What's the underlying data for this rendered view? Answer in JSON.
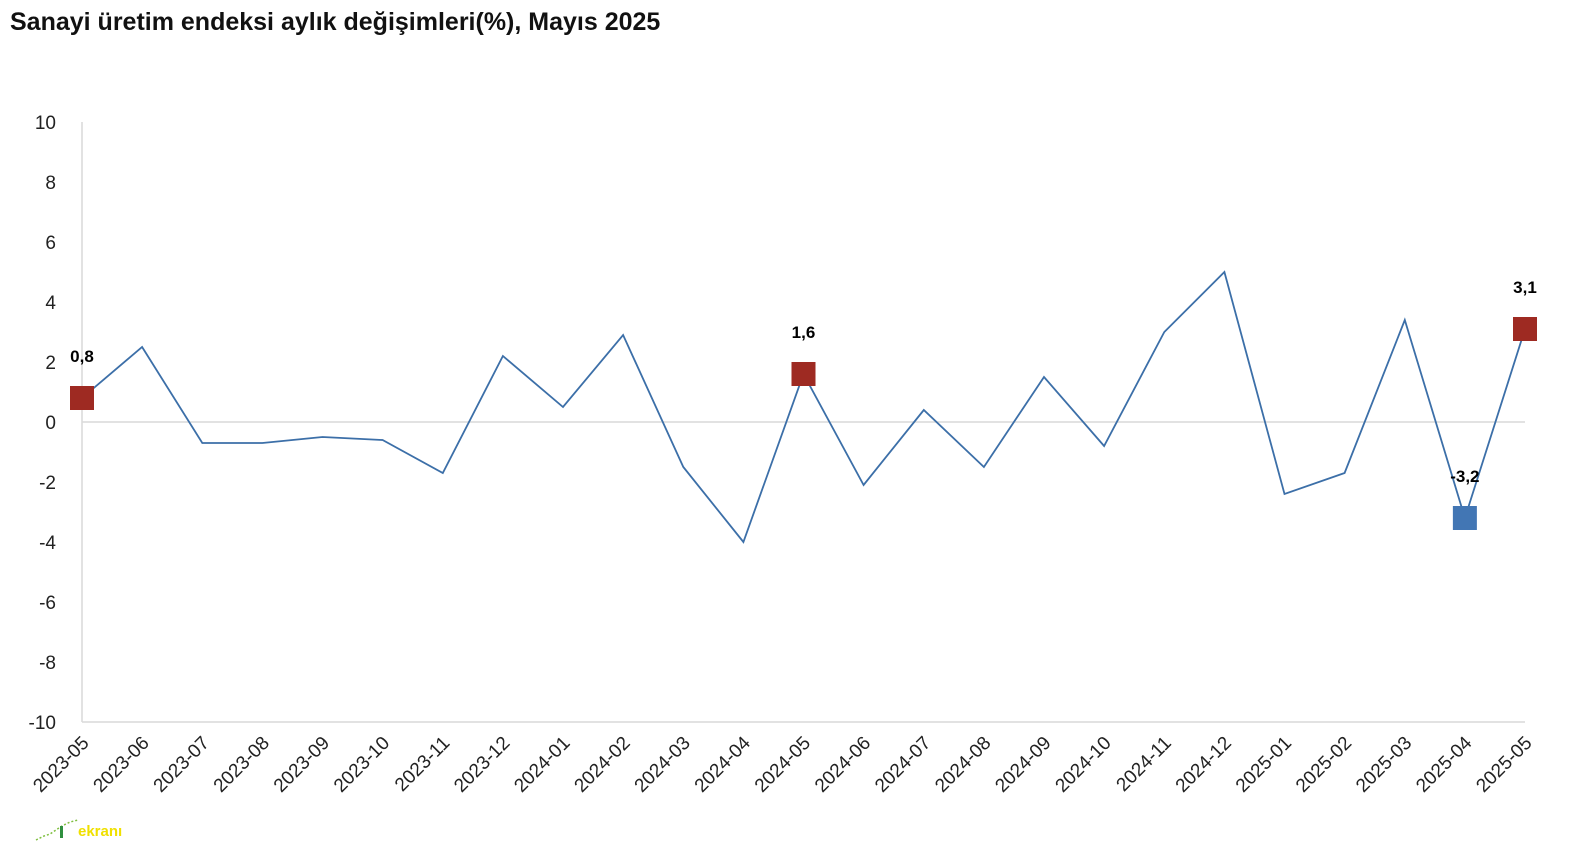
{
  "title": "Sanayi üretim endeksi aylık değişimleri(%), Mayıs 2025",
  "watermark": "ekranı",
  "colors": {
    "line": "#3c6fa8",
    "highlight_positive": "#9e2a22",
    "highlight_negative": "#4276b4",
    "axis": "#d9d9d9",
    "watermark": "#f0e000"
  },
  "chart_data": {
    "type": "line",
    "title": "Sanayi üretim endeksi aylık değişimleri(%), Mayıs 2025",
    "xlabel": "",
    "ylabel": "",
    "ylim": [
      -10,
      10
    ],
    "yticks": [
      "10",
      "8",
      "6",
      "4",
      "2",
      "0",
      "-2",
      "-4",
      "-6",
      "-8",
      "-10"
    ],
    "grid": false,
    "categories": [
      "2023-05",
      "2023-06",
      "2023-07",
      "2023-08",
      "2023-09",
      "2023-10",
      "2023-11",
      "2023-12",
      "2024-01",
      "2024-02",
      "2024-03",
      "2024-04",
      "2024-05",
      "2024-06",
      "2024-07",
      "2024-08",
      "2024-09",
      "2024-10",
      "2024-11",
      "2024-12",
      "2025-01",
      "2025-02",
      "2025-03",
      "2025-04",
      "2025-05"
    ],
    "values": [
      0.8,
      2.5,
      -0.7,
      -0.7,
      -0.5,
      -0.6,
      -1.7,
      2.2,
      0.5,
      2.9,
      -1.5,
      -4.0,
      1.6,
      -2.1,
      0.4,
      -1.5,
      1.5,
      -0.8,
      3.0,
      5.0,
      -2.4,
      -1.7,
      3.4,
      -3.2,
      3.1
    ],
    "highlights": [
      {
        "category": "2023-05",
        "value": 0.8,
        "label": "0,8",
        "color": "#9e2a22"
      },
      {
        "category": "2024-05",
        "value": 1.6,
        "label": "1,6",
        "color": "#9e2a22"
      },
      {
        "category": "2025-04",
        "value": -3.2,
        "label": "-3,2",
        "color": "#4276b4"
      },
      {
        "category": "2025-05",
        "value": 3.1,
        "label": "3,1",
        "color": "#9e2a22"
      }
    ]
  }
}
